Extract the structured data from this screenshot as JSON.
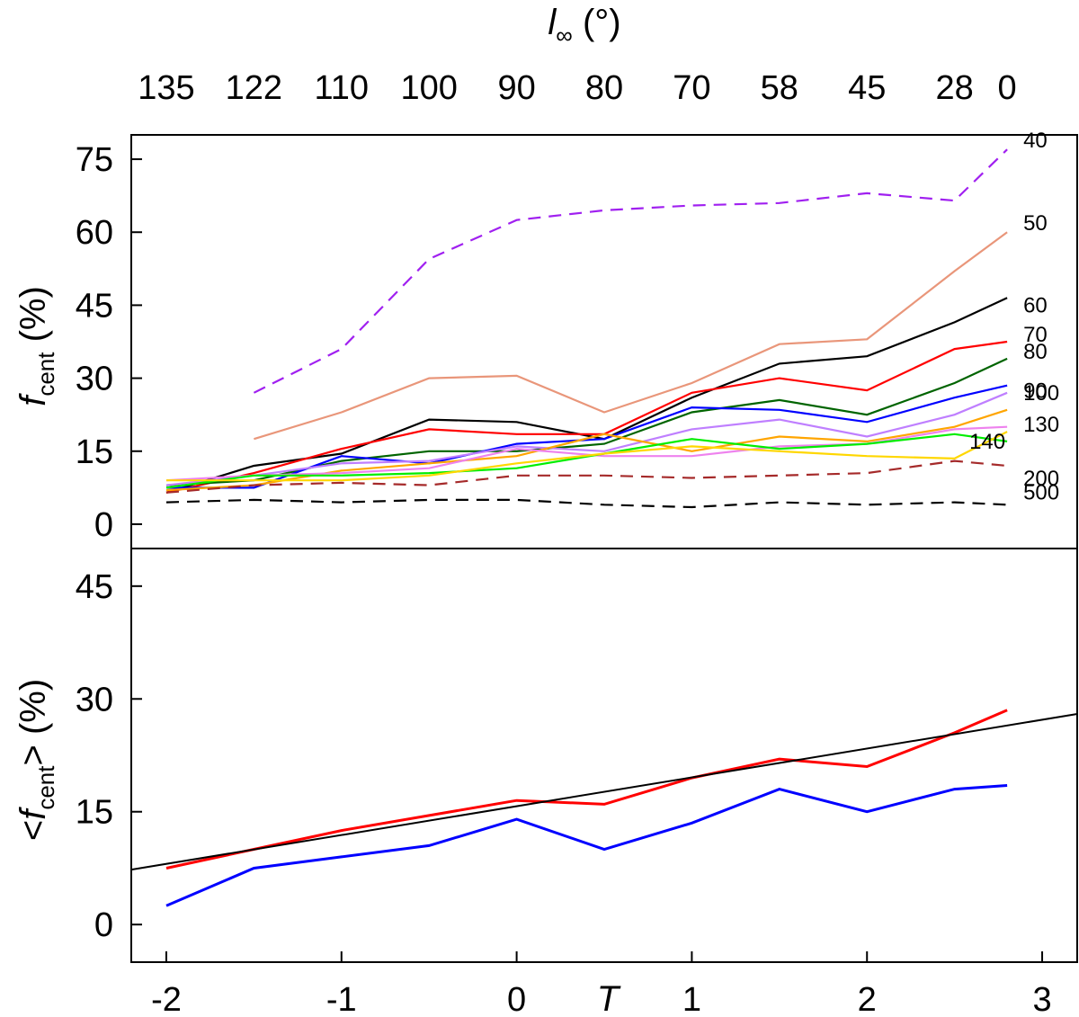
{
  "chart_data": [
    {
      "type": "line",
      "panel": "top",
      "ylabel_base": "f",
      "ylabel_sub": "cent",
      "ylabel_suffix": " (%)",
      "ylim": [
        -5,
        80
      ],
      "yticks": [
        "0",
        "15",
        "30",
        "45",
        "60",
        "75"
      ],
      "ytick_values": [
        0,
        15,
        30,
        45,
        60,
        75
      ],
      "top_axis_label_base": "l",
      "top_axis_label_sub": "∞",
      "top_axis_label_suffix": " (°)",
      "top_ticks": [
        {
          "label": "135",
          "T": -2
        },
        {
          "label": "122",
          "T": -1.5
        },
        {
          "label": "110",
          "T": -1
        },
        {
          "label": "100",
          "T": -0.5
        },
        {
          "label": "90",
          "T": 0
        },
        {
          "label": "80",
          "T": 0.5
        },
        {
          "label": "70",
          "T": 1
        },
        {
          "label": "58",
          "T": 1.5
        },
        {
          "label": "45",
          "T": 2
        },
        {
          "label": "28",
          "T": 2.5
        },
        {
          "label": "0",
          "T": 2.8
        }
      ],
      "x": [
        -2,
        -1.5,
        -1,
        -0.5,
        0,
        0.5,
        1,
        1.5,
        2,
        2.5,
        2.8
      ],
      "series": [
        {
          "name": "40",
          "color": "#a020f0",
          "dash": true,
          "values": [
            null,
            27,
            36,
            54.5,
            62.5,
            64.5,
            65.5,
            66,
            68,
            66.5,
            77
          ]
        },
        {
          "name": "50",
          "color": "#e9967a",
          "dash": false,
          "values": [
            null,
            17.5,
            23,
            30,
            30.5,
            23,
            29,
            37,
            38,
            52,
            60
          ]
        },
        {
          "name": "60",
          "color": "#000000",
          "dash": false,
          "values": [
            6.5,
            12,
            14.5,
            21.5,
            21,
            17.5,
            26,
            33,
            34.5,
            41.5,
            46.5
          ]
        },
        {
          "name": "70",
          "color": "#ff0000",
          "dash": false,
          "values": [
            6.5,
            10.5,
            15.5,
            19.5,
            18.5,
            18.5,
            27,
            30,
            27.5,
            36,
            37.5
          ]
        },
        {
          "name": "80",
          "color": "#006400",
          "dash": false,
          "values": [
            8,
            9,
            13,
            15,
            15,
            16.5,
            23,
            25.5,
            22.5,
            29,
            34
          ]
        },
        {
          "name": "90",
          "color": "#0000ff",
          "dash": false,
          "values": [
            7.5,
            7.5,
            14,
            12.5,
            16.5,
            17.5,
            24,
            23.5,
            21,
            26,
            28.5
          ]
        },
        {
          "name": "100",
          "color": "#bf7fff",
          "dash": false,
          "values": [
            8,
            10,
            12.5,
            13,
            16,
            15,
            19.5,
            21.5,
            18,
            22.5,
            27
          ]
        },
        {
          "name": "130",
          "color": "#ffa500",
          "dash": false,
          "values": [
            7,
            8,
            11,
            12.5,
            14,
            18.5,
            15,
            18,
            17,
            20,
            23.5
          ]
        },
        {
          "name": "140",
          "color": "#ee82ee",
          "dash": false,
          "values": [
            9,
            10,
            10.5,
            11.5,
            15.5,
            14,
            14,
            16,
            16.5,
            19.5,
            20
          ]
        },
        {
          "name": "",
          "color": "#00ee00",
          "dash": false,
          "values": [
            7.5,
            10,
            10,
            10.5,
            11.5,
            14.5,
            17.5,
            15.5,
            16.5,
            18.5,
            17
          ]
        },
        {
          "name": "",
          "color": "#ffd700",
          "dash": false,
          "values": [
            9,
            9,
            9,
            10,
            12.5,
            14.5,
            16,
            15,
            14,
            13.5,
            19
          ]
        },
        {
          "name": "200",
          "color": "#a52a2a",
          "dash": true,
          "values": [
            6.5,
            8,
            8.5,
            8,
            10,
            10,
            9.5,
            10,
            10.5,
            13,
            12
          ]
        },
        {
          "name": "500",
          "color": "#000000",
          "dash": true,
          "values": [
            4.5,
            5,
            4.5,
            5,
            5,
            4,
            3.5,
            4.5,
            4,
            4.5,
            4
          ]
        }
      ]
    },
    {
      "type": "line",
      "panel": "bottom",
      "ylabel_prefix": "<",
      "ylabel_base": "f",
      "ylabel_sub": "cent",
      "ylabel_suffix": "> (%)",
      "xlabel": "T",
      "xlim": [
        -2.2,
        3.2
      ],
      "ylim": [
        -5,
        50
      ],
      "yticks": [
        "0",
        "15",
        "30",
        "45"
      ],
      "ytick_values": [
        0,
        15,
        30,
        45
      ],
      "xticks": [
        "-2",
        "-1",
        "0",
        "1",
        "2",
        "3"
      ],
      "xtick_values": [
        -2,
        -1,
        0,
        1,
        2,
        3
      ],
      "x": [
        -2,
        -1.5,
        -1,
        -0.5,
        0,
        0.5,
        1,
        1.5,
        2,
        2.5,
        2.8
      ],
      "series": [
        {
          "color": "#ff0000",
          "values": [
            7.5,
            10,
            12.5,
            14.5,
            16.5,
            16,
            19.5,
            22,
            21,
            25.5,
            28.5
          ]
        },
        {
          "color": "#0000ff",
          "values": [
            2.5,
            7.5,
            9,
            10.5,
            14,
            10,
            13.5,
            18,
            15,
            18,
            18.5
          ]
        }
      ],
      "fit_line": {
        "color": "#000000",
        "x": [
          -2.2,
          3.2
        ],
        "y": [
          7.3,
          28.0
        ]
      }
    }
  ]
}
